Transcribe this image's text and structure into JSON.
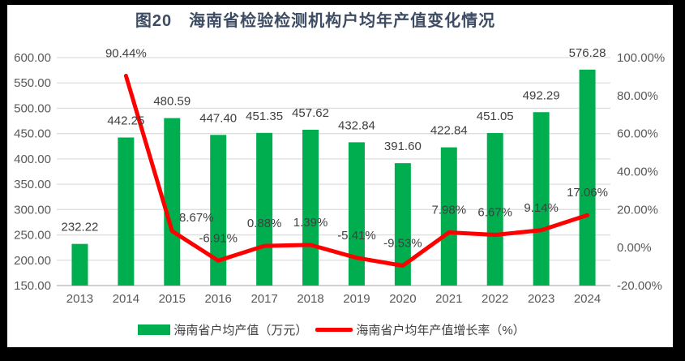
{
  "title": "图20　海南省检验检测机构户均年产值变化情况",
  "colors": {
    "frame": "#000000",
    "panel": "#ffffff",
    "bar": "#00ae50",
    "line": "#fe0000",
    "title_text": "#3d4c63",
    "axis_text": "#595959",
    "label_text": "#404040",
    "gridline": "#dedede",
    "axis_line": "#bfbfbf"
  },
  "chart_data": {
    "type": "bar+line combo",
    "title": "图20　海南省检验检测机构户均年产值变化情况",
    "categories": [
      "2013",
      "2014",
      "2015",
      "2016",
      "2017",
      "2018",
      "2019",
      "2020",
      "2021",
      "2022",
      "2023",
      "2024"
    ],
    "series": [
      {
        "name": "海南省户均产值（万元）",
        "type": "bar",
        "axis": "left",
        "color": "#00ae50",
        "values": [
          232.22,
          442.25,
          480.59,
          447.4,
          451.35,
          457.62,
          432.84,
          391.6,
          422.84,
          451.05,
          492.29,
          576.28
        ],
        "labels": [
          "232.22",
          "442.25",
          "480.59",
          "447.40",
          "451.35",
          "457.62",
          "432.84",
          "391.60",
          "422.84",
          "451.05",
          "492.29",
          "576.28"
        ]
      },
      {
        "name": "海南省户均年产值增长率（%）",
        "type": "line",
        "axis": "right",
        "color": "#fe0000",
        "values": [
          null,
          90.44,
          8.67,
          -6.91,
          0.88,
          1.39,
          -5.41,
          -9.53,
          7.98,
          6.67,
          9.14,
          17.06
        ],
        "labels": [
          null,
          "90.44%",
          "8.67%",
          "-6.91%",
          "0.88%",
          "1.39%",
          "-5.41%",
          "-9.53%",
          "7.98%",
          "6.67%",
          "9.14%",
          "17.06%"
        ]
      }
    ],
    "left_axis": {
      "min": 150,
      "max": 600,
      "step": 50,
      "labels_top_to_bottom": [
        "600.00",
        "550.00",
        "500.00",
        "450.00",
        "400.00",
        "350.00",
        "300.00",
        "250.00",
        "200.00",
        "150.00"
      ]
    },
    "right_axis": {
      "min": -20,
      "max": 100,
      "step": 20,
      "labels_top_to_bottom": [
        "100.00%",
        "80.00%",
        "60.00%",
        "40.00%",
        "20.00%",
        "0.00%",
        "-20.00%"
      ]
    },
    "legend": [
      {
        "label": "海南省户均产值（万元）",
        "color": "#00ae50",
        "type": "bar"
      },
      {
        "label": "海南省户均年产值增长率（%）",
        "color": "#fe0000",
        "type": "line"
      }
    ],
    "grid": "horizontal only",
    "legend_position": "bottom",
    "layout": {
      "bar_label_dy": -16,
      "line_label_default_offset": [
        0,
        -23
      ],
      "line_label_overrides": {
        "2": [
          30,
          -12
        ]
      }
    }
  }
}
